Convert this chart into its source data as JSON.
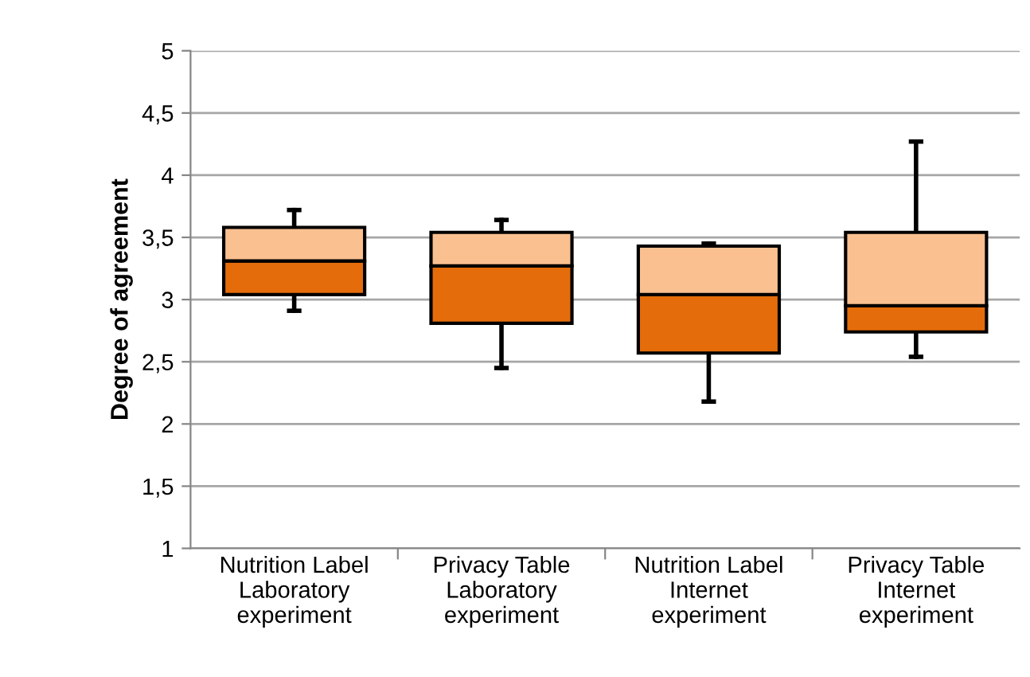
{
  "chart_data": {
    "type": "box",
    "ylabel": "Degree of agreement",
    "categories": [
      "Nutrition Label\nLaboratory\nexperiment",
      "Privacy Table\nLaboratory\nexperiment",
      "Nutrition Label\nInternet\nexperiment",
      "Privacy Table\nInternet\nexperiment"
    ],
    "boxes": [
      {
        "low": 2.91,
        "q1": 3.04,
        "median": 3.31,
        "q3": 3.58,
        "high": 3.72
      },
      {
        "low": 2.45,
        "q1": 2.81,
        "median": 3.27,
        "q3": 3.54,
        "high": 3.64
      },
      {
        "low": 2.18,
        "q1": 2.57,
        "median": 3.04,
        "q3": 3.43,
        "high": 3.45
      },
      {
        "low": 2.54,
        "q1": 2.74,
        "median": 2.95,
        "q3": 3.54,
        "high": 4.27
      }
    ],
    "colors": [
      [
        "#e46c0a",
        "#fac090"
      ],
      [
        "#e46c0a",
        "#fac090"
      ],
      [
        "#e46c0a",
        "#fac090"
      ],
      [
        "#e46c0a",
        "#fac090"
      ]
    ],
    "ylim": [
      1,
      5
    ],
    "yticks": [
      {
        "value": 1,
        "label": "1"
      },
      {
        "value": 1.5,
        "label": "1,5"
      },
      {
        "value": 2,
        "label": "2"
      },
      {
        "value": 2.5,
        "label": "2,5"
      },
      {
        "value": 3,
        "label": "3"
      },
      {
        "value": 3.5,
        "label": "3,5"
      },
      {
        "value": 4,
        "label": "4"
      },
      {
        "value": 4.5,
        "label": "4,5"
      },
      {
        "value": 5,
        "label": "5"
      }
    ],
    "grid": "y",
    "legend": false
  }
}
